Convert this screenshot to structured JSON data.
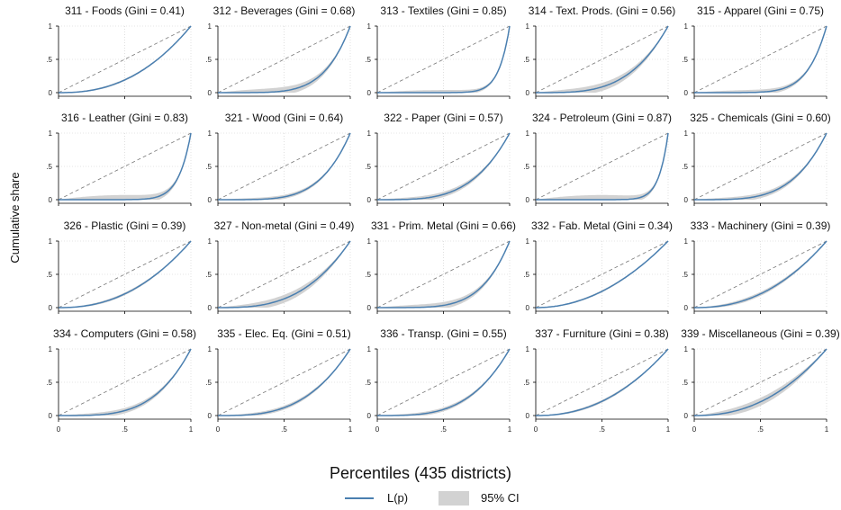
{
  "figure": {
    "ylabel": "Cumulative share",
    "xlabel": "Percentiles (435 districts)",
    "legend": [
      {
        "label": "L(p)",
        "kind": "line",
        "color": "#4a7fb0"
      },
      {
        "label": "95% CI",
        "kind": "band",
        "color": "#d2d2d2"
      }
    ],
    "colors": {
      "line": "#4a7fb0",
      "band": "#d2d2d2",
      "diagonal": "#777777",
      "grid": "#cccccc"
    }
  },
  "chart_data": [
    {
      "type": "line",
      "title": "311 - Foods (Gini = 0.41)",
      "gini": 0.41,
      "band": 0.015,
      "xlim": [
        0,
        1
      ],
      "ylim": [
        0,
        1
      ],
      "x_ticks": [
        "0",
        ".5",
        "1"
      ],
      "y_ticks": [
        "0",
        ".5",
        "1"
      ]
    },
    {
      "type": "line",
      "title": "312 - Beverages (Gini = 0.68)",
      "gini": 0.68,
      "band": 0.06,
      "xlim": [
        0,
        1
      ],
      "ylim": [
        0,
        1
      ],
      "x_ticks": [
        "0",
        ".5",
        "1"
      ],
      "y_ticks": [
        "0",
        ".5",
        "1"
      ]
    },
    {
      "type": "line",
      "title": "313 - Textiles (Gini = 0.85)",
      "gini": 0.85,
      "band": 0.04,
      "xlim": [
        0,
        1
      ],
      "ylim": [
        0,
        1
      ],
      "x_ticks": [
        "0",
        ".5",
        "1"
      ],
      "y_ticks": [
        "0",
        ".5",
        "1"
      ]
    },
    {
      "type": "line",
      "title": "314 - Text. Prods. (Gini = 0.56)",
      "gini": 0.56,
      "band": 0.06,
      "xlim": [
        0,
        1
      ],
      "ylim": [
        0,
        1
      ],
      "x_ticks": [
        "0",
        ".5",
        "1"
      ],
      "y_ticks": [
        "0",
        ".5",
        "1"
      ]
    },
    {
      "type": "line",
      "title": "315 - Apparel (Gini = 0.75)",
      "gini": 0.75,
      "band": 0.04,
      "xlim": [
        0,
        1
      ],
      "ylim": [
        0,
        1
      ],
      "x_ticks": [
        "0",
        ".5",
        "1"
      ],
      "y_ticks": [
        "0",
        ".5",
        "1"
      ]
    },
    {
      "type": "line",
      "title": "316 - Leather (Gini = 0.83)",
      "gini": 0.83,
      "band": 0.07,
      "xlim": [
        0,
        1
      ],
      "ylim": [
        0,
        1
      ],
      "x_ticks": [
        "0",
        ".5",
        "1"
      ],
      "y_ticks": [
        "0",
        ".5",
        "1"
      ]
    },
    {
      "type": "line",
      "title": "321 - Wood (Gini = 0.64)",
      "gini": 0.64,
      "band": 0.03,
      "xlim": [
        0,
        1
      ],
      "ylim": [
        0,
        1
      ],
      "x_ticks": [
        "0",
        ".5",
        "1"
      ],
      "y_ticks": [
        "0",
        ".5",
        "1"
      ]
    },
    {
      "type": "line",
      "title": "322 - Paper (Gini = 0.57)",
      "gini": 0.57,
      "band": 0.04,
      "xlim": [
        0,
        1
      ],
      "ylim": [
        0,
        1
      ],
      "x_ticks": [
        "0",
        ".5",
        "1"
      ],
      "y_ticks": [
        "0",
        ".5",
        "1"
      ]
    },
    {
      "type": "line",
      "title": "324 - Petroleum (Gini = 0.87)",
      "gini": 0.87,
      "band": 0.07,
      "xlim": [
        0,
        1
      ],
      "ylim": [
        0,
        1
      ],
      "x_ticks": [
        "0",
        ".5",
        "1"
      ],
      "y_ticks": [
        "0",
        ".5",
        "1"
      ]
    },
    {
      "type": "line",
      "title": "325 - Chemicals (Gini = 0.60)",
      "gini": 0.6,
      "band": 0.04,
      "xlim": [
        0,
        1
      ],
      "ylim": [
        0,
        1
      ],
      "x_ticks": [
        "0",
        ".5",
        "1"
      ],
      "y_ticks": [
        "0",
        ".5",
        "1"
      ]
    },
    {
      "type": "line",
      "title": "326 - Plastic (Gini = 0.39)",
      "gini": 0.39,
      "band": 0.02,
      "xlim": [
        0,
        1
      ],
      "ylim": [
        0,
        1
      ],
      "x_ticks": [
        "0",
        ".5",
        "1"
      ],
      "y_ticks": [
        "0",
        ".5",
        "1"
      ]
    },
    {
      "type": "line",
      "title": "327 - Non-metal (Gini = 0.49)",
      "gini": 0.49,
      "band": 0.06,
      "xlim": [
        0,
        1
      ],
      "ylim": [
        0,
        1
      ],
      "x_ticks": [
        "0",
        ".5",
        "1"
      ],
      "y_ticks": [
        "0",
        ".5",
        "1"
      ]
    },
    {
      "type": "line",
      "title": "331 - Prim. Metal (Gini = 0.66)",
      "gini": 0.66,
      "band": 0.05,
      "xlim": [
        0,
        1
      ],
      "ylim": [
        0,
        1
      ],
      "x_ticks": [
        "0",
        ".5",
        "1"
      ],
      "y_ticks": [
        "0",
        ".5",
        "1"
      ]
    },
    {
      "type": "line",
      "title": "332 - Fab. Metal (Gini = 0.34)",
      "gini": 0.34,
      "band": 0.015,
      "xlim": [
        0,
        1
      ],
      "ylim": [
        0,
        1
      ],
      "x_ticks": [
        "0",
        ".5",
        "1"
      ],
      "y_ticks": [
        "0",
        ".5",
        "1"
      ]
    },
    {
      "type": "line",
      "title": "333 - Machinery (Gini = 0.39)",
      "gini": 0.39,
      "band": 0.03,
      "xlim": [
        0,
        1
      ],
      "ylim": [
        0,
        1
      ],
      "x_ticks": [
        "0",
        ".5",
        "1"
      ],
      "y_ticks": [
        "0",
        ".5",
        "1"
      ]
    },
    {
      "type": "line",
      "title": "334 - Computers (Gini = 0.58)",
      "gini": 0.58,
      "band": 0.04,
      "xlim": [
        0,
        1
      ],
      "ylim": [
        0,
        1
      ],
      "x_ticks": [
        "0",
        ".5",
        "1"
      ],
      "y_ticks": [
        "0",
        ".5",
        "1"
      ]
    },
    {
      "type": "line",
      "title": "335 - Elec. Eq. (Gini = 0.51)",
      "gini": 0.51,
      "band": 0.03,
      "xlim": [
        0,
        1
      ],
      "ylim": [
        0,
        1
      ],
      "x_ticks": [
        "0",
        ".5",
        "1"
      ],
      "y_ticks": [
        "0",
        ".5",
        "1"
      ]
    },
    {
      "type": "line",
      "title": "336 - Transp. (Gini = 0.55)",
      "gini": 0.55,
      "band": 0.03,
      "xlim": [
        0,
        1
      ],
      "ylim": [
        0,
        1
      ],
      "x_ticks": [
        "0",
        ".5",
        "1"
      ],
      "y_ticks": [
        "0",
        ".5",
        "1"
      ]
    },
    {
      "type": "line",
      "title": "337 - Furniture (Gini = 0.38)",
      "gini": 0.38,
      "band": 0.02,
      "xlim": [
        0,
        1
      ],
      "ylim": [
        0,
        1
      ],
      "x_ticks": [
        "0",
        ".5",
        "1"
      ],
      "y_ticks": [
        "0",
        ".5",
        "1"
      ]
    },
    {
      "type": "line",
      "title": "339 - Miscellaneous (Gini = 0.39)",
      "gini": 0.39,
      "band": 0.06,
      "xlim": [
        0,
        1
      ],
      "ylim": [
        0,
        1
      ],
      "x_ticks": [
        "0",
        ".5",
        "1"
      ],
      "y_ticks": [
        "0",
        ".5",
        "1"
      ]
    }
  ]
}
